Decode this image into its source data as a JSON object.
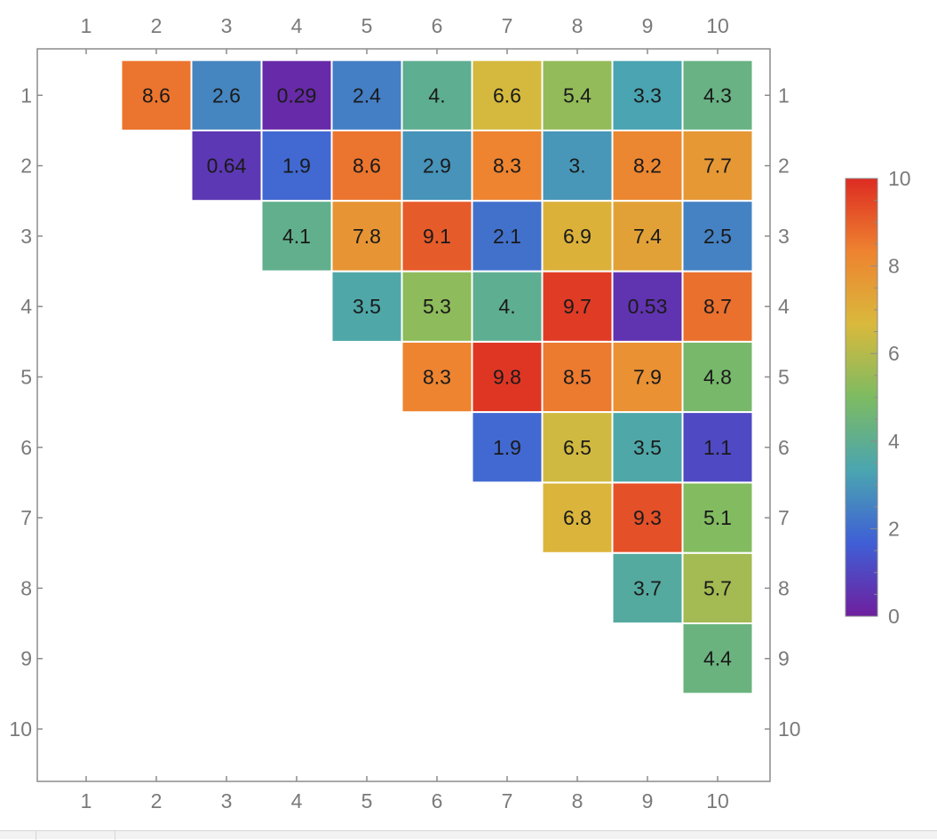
{
  "chart_data": {
    "type": "heatmap",
    "title": "",
    "xlabel": "",
    "ylabel": "",
    "x_ticks": [
      "1",
      "2",
      "3",
      "4",
      "5",
      "6",
      "7",
      "8",
      "9",
      "10"
    ],
    "y_ticks": [
      "1",
      "2",
      "3",
      "4",
      "5",
      "6",
      "7",
      "8",
      "9",
      "10"
    ],
    "frame": "all four sides, tick labels on all four sides",
    "y_axis_direction": "1 at top, 10 at bottom",
    "grid": false,
    "cells": [
      {
        "row": 1,
        "col": 2,
        "value": 8.6,
        "label": "8.6"
      },
      {
        "row": 1,
        "col": 3,
        "value": 2.6,
        "label": "2.6"
      },
      {
        "row": 1,
        "col": 4,
        "value": 0.29,
        "label": "0.29"
      },
      {
        "row": 1,
        "col": 5,
        "value": 2.4,
        "label": "2.4"
      },
      {
        "row": 1,
        "col": 6,
        "value": 4.0,
        "label": "4."
      },
      {
        "row": 1,
        "col": 7,
        "value": 6.6,
        "label": "6.6"
      },
      {
        "row": 1,
        "col": 8,
        "value": 5.4,
        "label": "5.4"
      },
      {
        "row": 1,
        "col": 9,
        "value": 3.3,
        "label": "3.3"
      },
      {
        "row": 1,
        "col": 10,
        "value": 4.3,
        "label": "4.3"
      },
      {
        "row": 2,
        "col": 3,
        "value": 0.64,
        "label": "0.64"
      },
      {
        "row": 2,
        "col": 4,
        "value": 1.9,
        "label": "1.9"
      },
      {
        "row": 2,
        "col": 5,
        "value": 8.6,
        "label": "8.6"
      },
      {
        "row": 2,
        "col": 6,
        "value": 2.9,
        "label": "2.9"
      },
      {
        "row": 2,
        "col": 7,
        "value": 8.3,
        "label": "8.3"
      },
      {
        "row": 2,
        "col": 8,
        "value": 3.0,
        "label": "3."
      },
      {
        "row": 2,
        "col": 9,
        "value": 8.2,
        "label": "8.2"
      },
      {
        "row": 2,
        "col": 10,
        "value": 7.7,
        "label": "7.7"
      },
      {
        "row": 3,
        "col": 4,
        "value": 4.1,
        "label": "4.1"
      },
      {
        "row": 3,
        "col": 5,
        "value": 7.8,
        "label": "7.8"
      },
      {
        "row": 3,
        "col": 6,
        "value": 9.1,
        "label": "9.1"
      },
      {
        "row": 3,
        "col": 7,
        "value": 2.1,
        "label": "2.1"
      },
      {
        "row": 3,
        "col": 8,
        "value": 6.9,
        "label": "6.9"
      },
      {
        "row": 3,
        "col": 9,
        "value": 7.4,
        "label": "7.4"
      },
      {
        "row": 3,
        "col": 10,
        "value": 2.5,
        "label": "2.5"
      },
      {
        "row": 4,
        "col": 5,
        "value": 3.5,
        "label": "3.5"
      },
      {
        "row": 4,
        "col": 6,
        "value": 5.3,
        "label": "5.3"
      },
      {
        "row": 4,
        "col": 7,
        "value": 4.0,
        "label": "4."
      },
      {
        "row": 4,
        "col": 8,
        "value": 9.7,
        "label": "9.7"
      },
      {
        "row": 4,
        "col": 9,
        "value": 0.53,
        "label": "0.53"
      },
      {
        "row": 4,
        "col": 10,
        "value": 8.7,
        "label": "8.7"
      },
      {
        "row": 5,
        "col": 6,
        "value": 8.3,
        "label": "8.3"
      },
      {
        "row": 5,
        "col": 7,
        "value": 9.8,
        "label": "9.8"
      },
      {
        "row": 5,
        "col": 8,
        "value": 8.5,
        "label": "8.5"
      },
      {
        "row": 5,
        "col": 9,
        "value": 7.9,
        "label": "7.9"
      },
      {
        "row": 5,
        "col": 10,
        "value": 4.8,
        "label": "4.8"
      },
      {
        "row": 6,
        "col": 7,
        "value": 1.9,
        "label": "1.9"
      },
      {
        "row": 6,
        "col": 8,
        "value": 6.5,
        "label": "6.5"
      },
      {
        "row": 6,
        "col": 9,
        "value": 3.5,
        "label": "3.5"
      },
      {
        "row": 6,
        "col": 10,
        "value": 1.1,
        "label": "1.1"
      },
      {
        "row": 7,
        "col": 8,
        "value": 6.8,
        "label": "6.8"
      },
      {
        "row": 7,
        "col": 9,
        "value": 9.3,
        "label": "9.3"
      },
      {
        "row": 7,
        "col": 10,
        "value": 5.1,
        "label": "5.1"
      },
      {
        "row": 8,
        "col": 9,
        "value": 3.7,
        "label": "3.7"
      },
      {
        "row": 8,
        "col": 10,
        "value": 5.7,
        "label": "5.7"
      },
      {
        "row": 9,
        "col": 10,
        "value": 4.4,
        "label": "4.4"
      }
    ],
    "legend": {
      "type": "color-bar",
      "placement": "right",
      "range": [
        0,
        10
      ],
      "tick_labels": [
        "0",
        "2",
        "4",
        "6",
        "8",
        "10"
      ],
      "colormap": [
        "#6f1f9e",
        "#3f5fd6",
        "#4aa5b0",
        "#7dbb62",
        "#d9b93c",
        "#ee8330",
        "#dd2b22"
      ]
    }
  }
}
